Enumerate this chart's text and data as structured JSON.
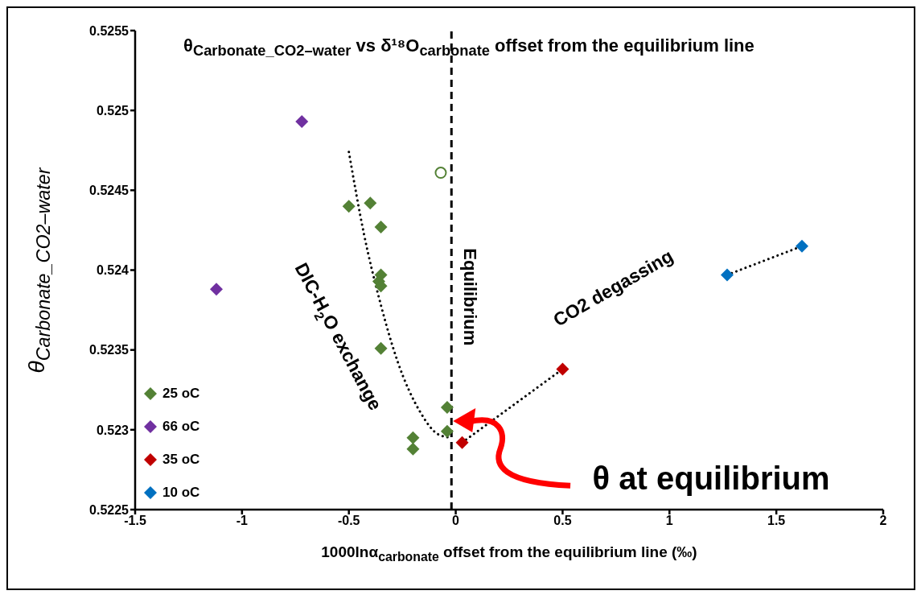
{
  "chart_data": {
    "type": "scatter",
    "title": "θ$_{Carbonate_CO2–water}$ vs δ¹⁸O$_{carbonate}$ offset from the equilibrium line",
    "xlabel": "1000lnα$_{carbonate}$ offset from the equilibrium line (‰)",
    "ylabel": "θ$_{Carbonate_CO2–water}$",
    "xlim": [
      -1.5,
      2
    ],
    "xticks": [
      -1.5,
      -1,
      -0.5,
      0,
      0.5,
      1,
      1.5,
      2
    ],
    "ylim": [
      0.5225,
      0.5255
    ],
    "yticks": [
      0.5225,
      0.523,
      0.5235,
      0.524,
      0.5245,
      0.525,
      0.5255
    ],
    "legend": "bottom left",
    "marker": "diamond",
    "ref_lines": [
      {
        "axis": "x",
        "value": -0.02,
        "label": "Equilibrium",
        "color": "#000000",
        "line_style": "dashed"
      }
    ],
    "annotations": [
      "DIC-H$_{2}$O exchange",
      "CO2 degassing",
      "θ at equilibrium"
    ],
    "series": [
      {
        "type": "line",
        "color": "#000000",
        "line_style": "dotted",
        "marker": "none",
        "x": [
          -0.5,
          -0.43,
          -0.35,
          -0.27,
          -0.17,
          -0.08,
          -0.02
        ],
        "values": [
          0.52474,
          0.52423,
          0.52378,
          0.52342,
          0.52312,
          0.52297,
          0.52295
        ]
      },
      {
        "type": "line",
        "color": "#000000",
        "line_style": "dotted",
        "marker": "none",
        "x": [
          0.03,
          0.5
        ],
        "values": [
          0.52292,
          0.52338
        ]
      },
      {
        "type": "line",
        "color": "#000000",
        "line_style": "dotted",
        "marker": "none",
        "x": [
          1.27,
          1.62
        ],
        "values": [
          0.52397,
          0.52415
        ]
      },
      {
        "name": "25 oC",
        "color": "#538135",
        "x": [
          -0.5,
          -0.4,
          -0.35,
          -0.35,
          -0.36,
          -0.35,
          -0.35,
          -0.04,
          -0.04,
          -0.2,
          -0.2
        ],
        "values": [
          0.5244,
          0.52442,
          0.52427,
          0.52397,
          0.52393,
          0.5239,
          0.52351,
          0.52314,
          0.52299,
          0.52295,
          0.52288
        ]
      },
      {
        "color": "#538135",
        "marker": "circle",
        "x": [
          -0.07
        ],
        "values": [
          0.52461
        ]
      },
      {
        "name": "66 oC",
        "color": "#7030a0",
        "x": [
          -0.72,
          -1.12
        ],
        "values": [
          0.52493,
          0.52388
        ]
      },
      {
        "name": "35 oC",
        "color": "#c00000",
        "x": [
          0.5,
          0.03
        ],
        "values": [
          0.52338,
          0.52292
        ]
      },
      {
        "name": "10 oC",
        "color": "#0070c0",
        "x": [
          1.27,
          1.62
        ],
        "values": [
          0.52397,
          0.52415
        ]
      }
    ]
  }
}
